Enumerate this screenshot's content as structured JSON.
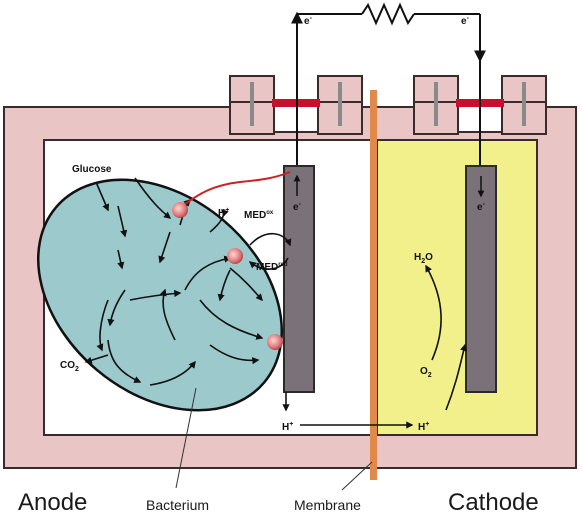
{
  "labels": {
    "anode": "Anode",
    "cathode": "Cathode",
    "bacterium": "Bacterium",
    "membrane": "Membrane",
    "glucose": "Glucose",
    "co2": "CO",
    "co2_sub": "2",
    "h_plus_1": "H",
    "h_plus_1_sup": "+",
    "h_plus_2": "H",
    "h_plus_2_sup": "+",
    "h_plus_3": "H",
    "h_plus_3_sup": "+",
    "med_ox": "MED",
    "med_ox_sup": "ox",
    "med_red": "MED",
    "med_red_sup": "red",
    "h2o": "H",
    "h2o_sub": "2",
    "h2o_o": "O",
    "o2": "O",
    "o2_sub": "2",
    "e_left_wire": "e",
    "e_left_wire_sup": "-",
    "e_right_wire": "e",
    "e_right_wire_sup": "-",
    "e_anode": "e",
    "e_anode_sup": "-",
    "e_cathode": "e",
    "e_cathode_sup": "-"
  },
  "colors": {
    "chamber": "#e9c5c5",
    "chamber_stroke": "#3a2a2a",
    "anode_fluid": "#ffffff",
    "cathode_fluid": "#f2f08a",
    "bacterium": "#9cc9cc",
    "electrode": "#7a7278",
    "membrane": "#e0894a",
    "seal": "#c8102e",
    "wire": "#111111",
    "mediator_wire": "#cc1f1f"
  }
}
